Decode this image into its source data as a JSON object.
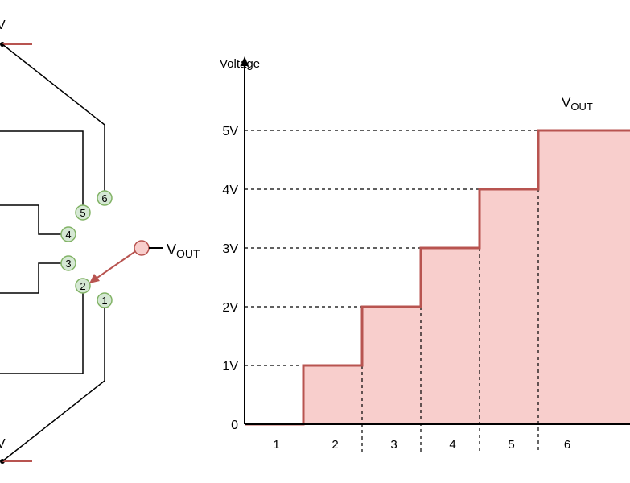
{
  "switch": {
    "top_supply_label": "V",
    "bottom_supply_label": "V",
    "output_label": "V",
    "output_sub": "OUT",
    "taps": [
      "1",
      "2",
      "3",
      "4",
      "5",
      "6"
    ],
    "selected_tap": "2"
  },
  "chart_data": {
    "type": "step",
    "ylabel": "Voltage",
    "series_label": "V",
    "series_sub": "OUT",
    "ytick_labels": [
      "0",
      "1V",
      "2V",
      "3V",
      "4V",
      "5V"
    ],
    "y_values": [
      0,
      1,
      2,
      3,
      4,
      5
    ],
    "positions": [
      "1",
      "2",
      "3",
      "4",
      "5",
      "6"
    ],
    "step_values": [
      0,
      1,
      2,
      3,
      4,
      5
    ],
    "fill_color": "#f8cecc",
    "line_color": "#b85450"
  },
  "colors": {
    "tap_fill": "#d5e8d4",
    "tap_stroke": "#82b366",
    "accent": "#b85450",
    "wire": "#000000"
  }
}
